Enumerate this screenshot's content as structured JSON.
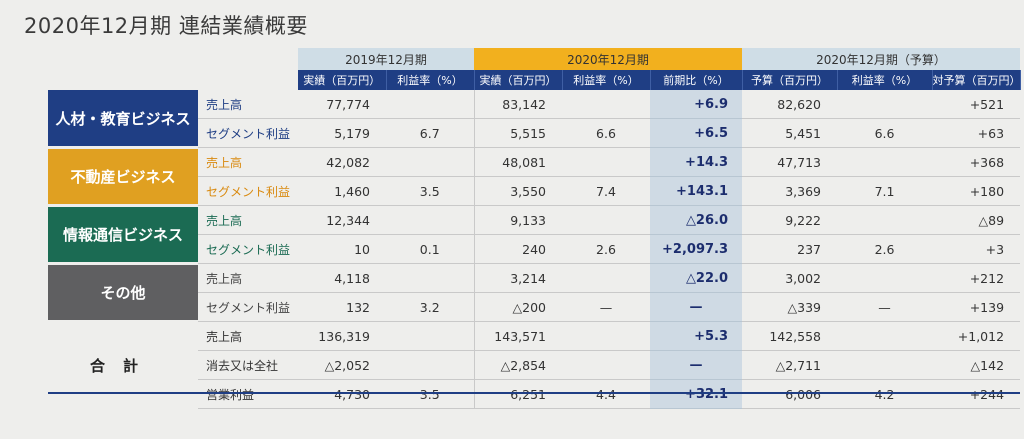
{
  "title": "2020年12月期 連結業績概要",
  "groups": {
    "g2019": "2019年12月期",
    "g2020": "2020年12月期",
    "g2021": "2020年12月期（予算）"
  },
  "columns": {
    "actual_2019": "実績（百万円）",
    "margin_2019": "利益率（%）",
    "actual_2020": "実績（百万円）",
    "margin_2020": "利益率（%）",
    "yoy": "前期比（%）",
    "budget": "予算（百万円）",
    "margin_budget": "利益率（%）",
    "vs_budget": "対予算（百万円）"
  },
  "colors": {
    "hr": "#1f3e84",
    "realestate": "#e0a021",
    "it": "#1b6b53",
    "other": "#5f5f61"
  },
  "segments": {
    "hr": {
      "name": "人材・教育ビジネス",
      "sales": {
        "label": "売上高",
        "a2019": "77,774",
        "m2019": "",
        "a2020": "83,142",
        "m2020": "",
        "yoy": "+6.9",
        "budget": "82,620",
        "mbudget": "",
        "vs": "+521"
      },
      "profit": {
        "label": "セグメント利益",
        "a2019": "5,179",
        "m2019": "6.7",
        "a2020": "5,515",
        "m2020": "6.6",
        "yoy": "+6.5",
        "budget": "5,451",
        "mbudget": "6.6",
        "vs": "+63"
      }
    },
    "realestate": {
      "name": "不動産ビジネス",
      "sales": {
        "label": "売上高",
        "a2019": "42,082",
        "m2019": "",
        "a2020": "48,081",
        "m2020": "",
        "yoy": "+14.3",
        "budget": "47,713",
        "mbudget": "",
        "vs": "+368"
      },
      "profit": {
        "label": "セグメント利益",
        "a2019": "1,460",
        "m2019": "3.5",
        "a2020": "3,550",
        "m2020": "7.4",
        "yoy": "+143.1",
        "budget": "3,369",
        "mbudget": "7.1",
        "vs": "+180"
      }
    },
    "it": {
      "name": "情報通信ビジネス",
      "sales": {
        "label": "売上高",
        "a2019": "12,344",
        "m2019": "",
        "a2020": "9,133",
        "m2020": "",
        "yoy": "△26.0",
        "budget": "9,222",
        "mbudget": "",
        "vs": "△89"
      },
      "profit": {
        "label": "セグメント利益",
        "a2019": "10",
        "m2019": "0.1",
        "a2020": "240",
        "m2020": "2.6",
        "yoy": "+2,097.3",
        "budget": "237",
        "mbudget": "2.6",
        "vs": "+3"
      }
    },
    "other": {
      "name": "その他",
      "sales": {
        "label": "売上高",
        "a2019": "4,118",
        "m2019": "",
        "a2020": "3,214",
        "m2020": "",
        "yoy": "△22.0",
        "budget": "3,002",
        "mbudget": "",
        "vs": "+212"
      },
      "profit": {
        "label": "セグメント利益",
        "a2019": "132",
        "m2019": "3.2",
        "a2020": "△200",
        "m2020": "—",
        "yoy": "—",
        "budget": "△339",
        "mbudget": "—",
        "vs": "+139"
      }
    }
  },
  "total": {
    "name": "合計",
    "sales": {
      "label": "売上高",
      "a2019": "136,319",
      "m2019": "",
      "a2020": "143,571",
      "m2020": "",
      "yoy": "+5.3",
      "budget": "142,558",
      "mbudget": "",
      "vs": "+1,012"
    },
    "elim": {
      "label": "消去又は全社",
      "a2019": "△2,052",
      "m2019": "",
      "a2020": "△2,854",
      "m2020": "",
      "yoy": "—",
      "budget": "△2,711",
      "mbudget": "",
      "vs": "△142"
    },
    "op": {
      "label": "営業利益",
      "a2019": "4,730",
      "m2019": "3.5",
      "a2020": "6,251",
      "m2020": "4.4",
      "yoy": "+32.1",
      "budget": "6,006",
      "mbudget": "4.2",
      "vs": "+244"
    }
  }
}
